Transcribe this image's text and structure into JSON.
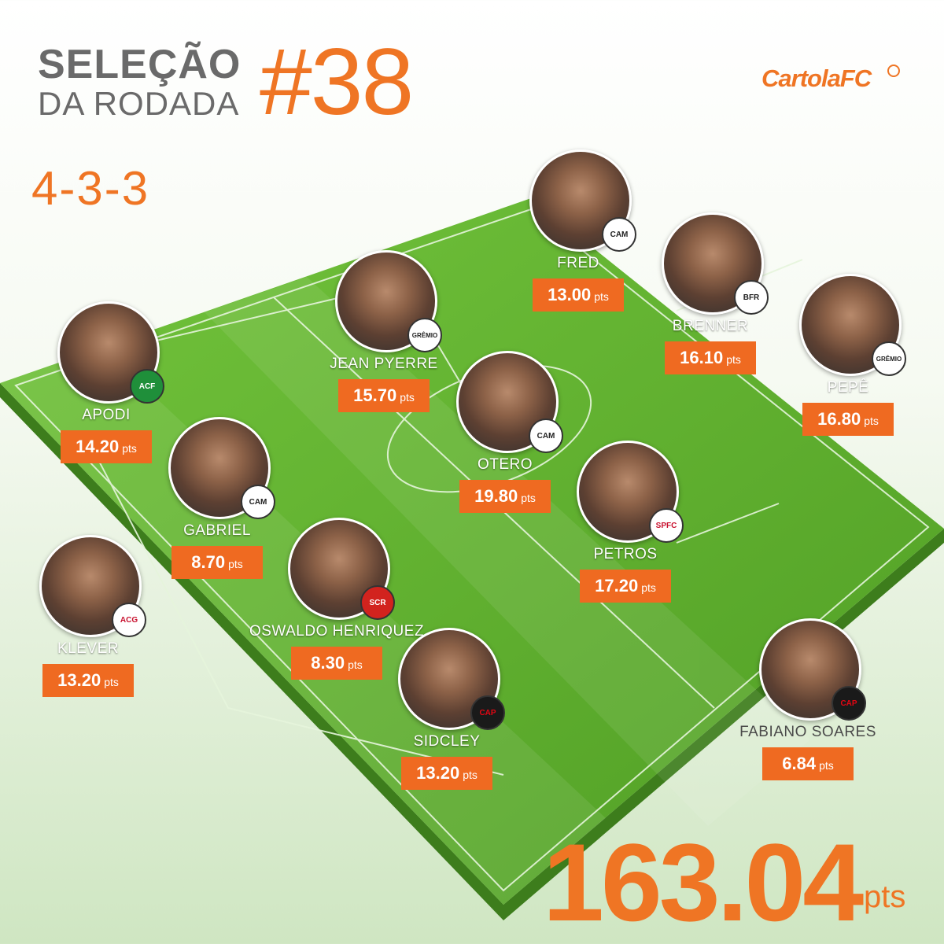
{
  "header": {
    "title_line1": "SELEÇÃO",
    "title_line2": "DA RODADA",
    "round": "#38",
    "formation": "4-3-3",
    "logo": "CartolaFC"
  },
  "colors": {
    "accent": "#ef7524",
    "score_bg": "#ef6a21",
    "pitch": "#62b330"
  },
  "players": [
    {
      "name": "FRED",
      "score": "13.00",
      "unit": "pts",
      "crest": "CAM"
    },
    {
      "name": "BRENNER",
      "score": "16.10",
      "unit": "pts",
      "crest": "BFR"
    },
    {
      "name": "JEAN PYERRE",
      "score": "15.70",
      "unit": "pts",
      "crest": "GRÊMIO"
    },
    {
      "name": "PEPÊ",
      "score": "16.80",
      "unit": "pts",
      "crest": "GRÊMIO"
    },
    {
      "name": "APODI",
      "score": "14.20",
      "unit": "pts",
      "crest": "ACF"
    },
    {
      "name": "OTERO",
      "score": "19.80",
      "unit": "pts",
      "crest": "CAM"
    },
    {
      "name": "GABRIEL",
      "score": "8.70",
      "unit": "pts",
      "crest": "CAM"
    },
    {
      "name": "PETROS",
      "score": "17.20",
      "unit": "pts",
      "crest": "SPFC"
    },
    {
      "name": "KLEVER",
      "score": "13.20",
      "unit": "pts",
      "crest": "ACG"
    },
    {
      "name": "OSWALDO HENRIQUEZ",
      "score": "8.30",
      "unit": "pts",
      "crest": "SCR"
    },
    {
      "name": "SIDCLEY",
      "score": "13.20",
      "unit": "pts",
      "crest": "CAP"
    }
  ],
  "coach": {
    "name": "FABIANO SOARES",
    "score": "6.84",
    "unit": "pts",
    "crest": "CAP"
  },
  "total": {
    "value": "163.04",
    "unit": "pts"
  }
}
